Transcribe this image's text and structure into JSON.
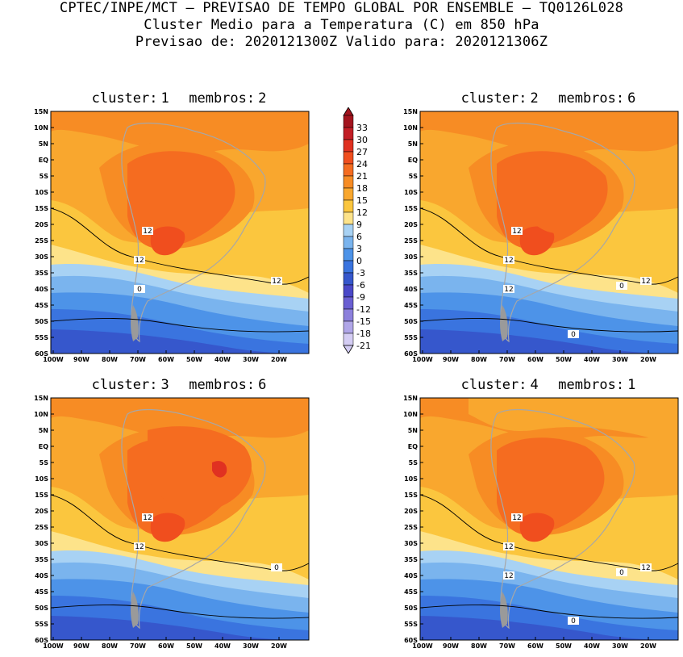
{
  "header": {
    "line1": "CPTEC/INPE/MCT – PREVISAO DE TEMPO GLOBAL POR ENSEMBLE – TQ0126L028",
    "line2": "Cluster Medio para a Temperatura (C) em 850 hPa",
    "line3": "Previsao de: 2020121300Z   Valido para: 2020121306Z"
  },
  "axes": {
    "lat_labels": [
      "15N",
      "10N",
      "5N",
      "EQ",
      "5S",
      "10S",
      "15S",
      "20S",
      "25S",
      "30S",
      "35S",
      "40S",
      "45S",
      "50S",
      "55S",
      "60S"
    ],
    "lon_labels": [
      "100W",
      "90W",
      "80W",
      "70W",
      "60W",
      "50W",
      "40W",
      "30W",
      "20W"
    ]
  },
  "colorbar": {
    "labels": [
      "33",
      "30",
      "27",
      "24",
      "21",
      "18",
      "15",
      "12",
      "9",
      "6",
      "3",
      "0",
      "-3",
      "-6",
      "-9",
      "-12",
      "-15",
      "-18",
      "-21"
    ],
    "colors": [
      "#a3141e",
      "#c21e25",
      "#e03121",
      "#f04e1e",
      "#f56c20",
      "#f78c24",
      "#f9a72e",
      "#fbc63e",
      "#fde38a",
      "#a8d2f4",
      "#7ab4ee",
      "#4d93e8",
      "#3a74df",
      "#3657cc",
      "#4a48c8",
      "#6a5fd2",
      "#8c80dc",
      "#b0a6e8",
      "#d4cdf4"
    ]
  },
  "panels": [
    {
      "label": "cluster:",
      "cluster": "1",
      "members_label": "membros:",
      "members": "2",
      "contours": [
        "12",
        "12",
        "12",
        "0"
      ]
    },
    {
      "label": "cluster:",
      "cluster": "2",
      "members_label": "membros:",
      "members": "6",
      "contours": [
        "12",
        "12",
        "12",
        "12",
        "0",
        "0"
      ]
    },
    {
      "label": "cluster:",
      "cluster": "3",
      "members_label": "membros:",
      "members": "6",
      "contours": [
        "12",
        "12",
        "0"
      ]
    },
    {
      "label": "cluster:",
      "cluster": "4",
      "members_label": "membros:",
      "members": "1",
      "contours": [
        "12",
        "12",
        "12",
        "12",
        "0",
        "0"
      ]
    }
  ]
}
